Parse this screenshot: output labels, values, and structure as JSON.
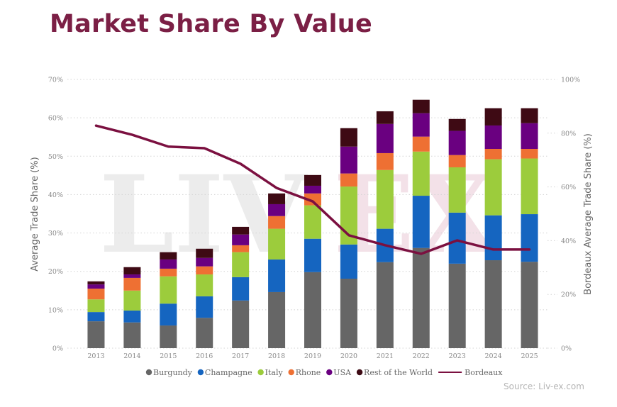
{
  "title": "Market Share By Value",
  "source": "Source: Liv-ex.com",
  "watermark": {
    "left": "LIV",
    "right": "EX"
  },
  "chart_data": {
    "type": "bar",
    "stacked": true,
    "title": "Market Share By Value",
    "xlabel": "",
    "ylabel": "Average Trade Share (%)",
    "y2label": "Bordeaux Average Trade Share (%)",
    "ylim": [
      0,
      70
    ],
    "y2lim": [
      0,
      100
    ],
    "yticks": [
      "0%",
      "10%",
      "20%",
      "30%",
      "40%",
      "50%",
      "60%",
      "70%"
    ],
    "y2ticks": [
      "0%",
      "20%",
      "40%",
      "60%",
      "80%",
      "100%"
    ],
    "grid": true,
    "legend_position": "bottom",
    "categories": [
      "2013",
      "2014",
      "2015",
      "2016",
      "2017",
      "2018",
      "2019",
      "2020",
      "2021",
      "2022",
      "2023",
      "2024",
      "2025"
    ],
    "series": [
      {
        "name": "Burgundy",
        "color": "#666666",
        "values": [
          7.0,
          6.7,
          5.9,
          7.9,
          12.4,
          14.6,
          19.8,
          18.1,
          22.4,
          26.1,
          22.0,
          22.9,
          22.5
        ]
      },
      {
        "name": "Champagne",
        "color": "#1565c0",
        "values": [
          2.4,
          3.1,
          5.7,
          5.6,
          6.1,
          8.5,
          8.7,
          8.9,
          8.7,
          13.6,
          13.3,
          11.7,
          12.4
        ]
      },
      {
        "name": "Italy",
        "color": "#9ccc3c",
        "values": [
          3.3,
          5.2,
          7.1,
          5.7,
          6.5,
          8.0,
          8.7,
          15.1,
          15.3,
          11.5,
          11.8,
          14.6,
          14.5
        ]
      },
      {
        "name": "Rhone",
        "color": "#ee7033",
        "values": [
          2.8,
          3.3,
          2.0,
          2.1,
          1.8,
          3.3,
          3.1,
          3.4,
          4.4,
          3.9,
          3.2,
          2.7,
          2.5
        ]
      },
      {
        "name": "USA",
        "color": "#6a0080",
        "values": [
          1.1,
          0.9,
          2.4,
          2.2,
          2.8,
          3.1,
          2.0,
          7.0,
          7.6,
          6.1,
          6.3,
          6.1,
          6.7
        ]
      },
      {
        "name": "Rest of the World",
        "color": "#3e0a14",
        "values": [
          0.8,
          1.9,
          1.9,
          2.4,
          2.0,
          2.8,
          2.8,
          4.8,
          3.3,
          3.5,
          3.1,
          4.5,
          3.9
        ]
      }
    ],
    "line_series": {
      "name": "Bordeaux",
      "color": "#7b1040",
      "axis": "right",
      "values": [
        82.8,
        79.4,
        75.0,
        74.4,
        68.6,
        59.6,
        54.6,
        42.0,
        38.3,
        35.1,
        40.1,
        36.7,
        36.7
      ]
    }
  }
}
